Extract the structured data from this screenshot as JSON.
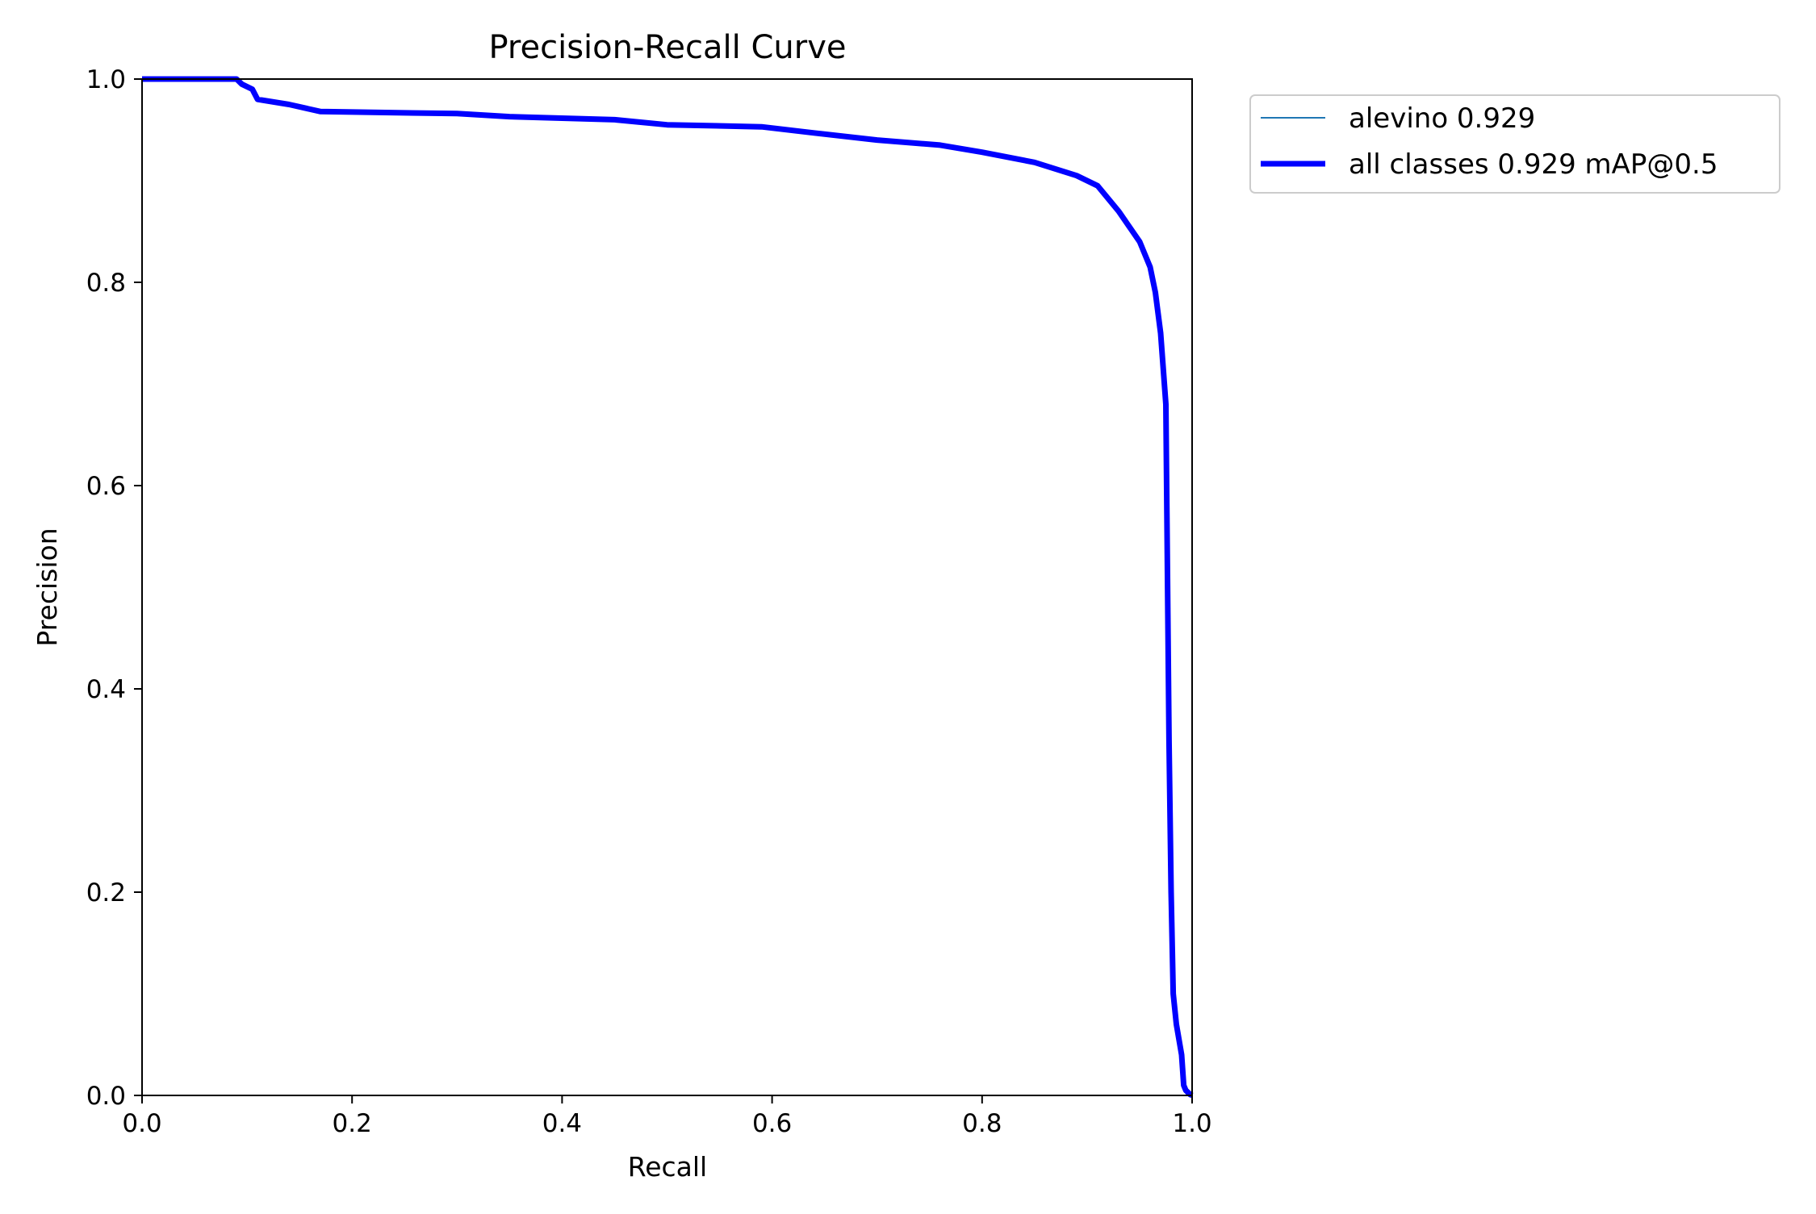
{
  "chart_data": {
    "type": "line",
    "title": "Precision-Recall Curve",
    "xlabel": "Recall",
    "ylabel": "Precision",
    "xlim": [
      0.0,
      1.0
    ],
    "ylim": [
      0.0,
      1.0
    ],
    "xticks": [
      "0.0",
      "0.2",
      "0.4",
      "0.6",
      "0.8",
      "1.0"
    ],
    "yticks": [
      "0.0",
      "0.2",
      "0.4",
      "0.6",
      "0.8",
      "1.0"
    ],
    "grid": false,
    "legend_position": "outside-top-right",
    "series": [
      {
        "name": "alevino 0.929",
        "color": "#1f77b4",
        "style": "thin",
        "x": [
          0.0,
          0.09,
          0.095,
          0.105,
          0.11,
          0.14,
          0.17,
          0.3,
          0.35,
          0.45,
          0.5,
          0.59,
          0.64,
          0.7,
          0.76,
          0.8,
          0.85,
          0.89,
          0.91,
          0.93,
          0.95,
          0.96,
          0.965,
          0.97,
          0.975,
          0.978,
          0.98,
          0.982,
          0.985,
          0.99,
          0.992,
          0.994,
          0.996,
          0.998,
          1.0
        ],
        "y": [
          1.0,
          1.0,
          0.995,
          0.99,
          0.98,
          0.975,
          0.968,
          0.966,
          0.963,
          0.96,
          0.955,
          0.953,
          0.947,
          0.94,
          0.935,
          0.928,
          0.918,
          0.905,
          0.895,
          0.87,
          0.84,
          0.815,
          0.79,
          0.75,
          0.68,
          0.35,
          0.2,
          0.1,
          0.07,
          0.04,
          0.01,
          0.005,
          0.003,
          0.001,
          0.0
        ]
      },
      {
        "name": "all classes 0.929 mAP@0.5",
        "color": "#0000ff",
        "style": "thick",
        "x": [
          0.0,
          0.09,
          0.095,
          0.105,
          0.11,
          0.14,
          0.17,
          0.3,
          0.35,
          0.45,
          0.5,
          0.59,
          0.64,
          0.7,
          0.76,
          0.8,
          0.85,
          0.89,
          0.91,
          0.93,
          0.95,
          0.96,
          0.965,
          0.97,
          0.975,
          0.978,
          0.98,
          0.982,
          0.985,
          0.99,
          0.992,
          0.994,
          0.996,
          0.998,
          1.0
        ],
        "y": [
          1.0,
          1.0,
          0.995,
          0.99,
          0.98,
          0.975,
          0.968,
          0.966,
          0.963,
          0.96,
          0.955,
          0.953,
          0.947,
          0.94,
          0.935,
          0.928,
          0.918,
          0.905,
          0.895,
          0.87,
          0.84,
          0.815,
          0.79,
          0.75,
          0.68,
          0.35,
          0.2,
          0.1,
          0.07,
          0.04,
          0.01,
          0.005,
          0.003,
          0.001,
          0.0
        ]
      }
    ]
  }
}
